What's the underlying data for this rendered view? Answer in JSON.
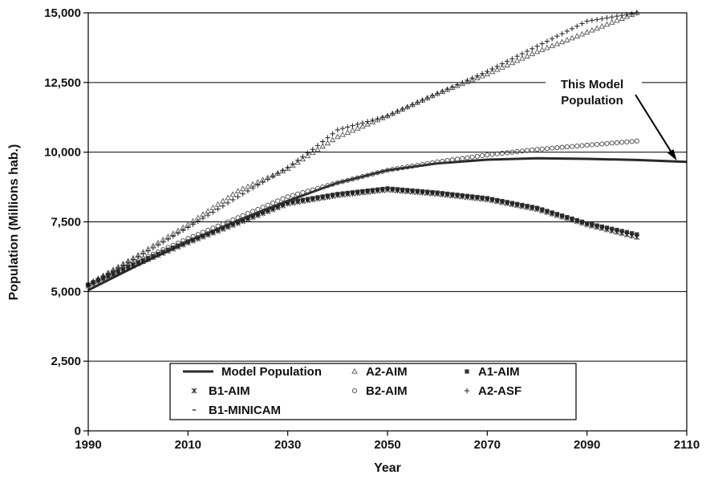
{
  "chart_data": {
    "type": "line",
    "xlabel": "Year",
    "ylabel": "Population (Millions hab.)",
    "xlim": [
      1990,
      2110
    ],
    "ylim": [
      0,
      15000
    ],
    "x_ticks": [
      "1990",
      "2010",
      "2030",
      "2050",
      "2070",
      "2090",
      "2110"
    ],
    "y_ticks": [
      "0",
      "2,500",
      "5,000",
      "7,500",
      "10,000",
      "12,500",
      "15,000"
    ],
    "grid": "horizontal",
    "legend_position": "bottom",
    "annotation": {
      "lines": [
        "This Model",
        "Population"
      ],
      "points_to": {
        "x": 2108,
        "y": 9700
      }
    },
    "series": [
      {
        "name": "Model Population",
        "marker": "line",
        "x": [
          1990,
          2000,
          2010,
          2020,
          2030,
          2040,
          2050,
          2060,
          2070,
          2080,
          2090,
          2100,
          2110
        ],
        "y": [
          5050,
          5950,
          6800,
          7550,
          8250,
          8900,
          9350,
          9600,
          9730,
          9780,
          9760,
          9720,
          9650
        ]
      },
      {
        "name": "A2-AIM",
        "marker": "triangle",
        "x": [
          1990,
          2000,
          2010,
          2020,
          2030,
          2040,
          2050,
          2060,
          2070,
          2080,
          2090,
          2100
        ],
        "y": [
          5250,
          6300,
          7400,
          8600,
          9400,
          10550,
          11300,
          12100,
          12800,
          13600,
          14300,
          15000
        ]
      },
      {
        "name": "A1-AIM",
        "marker": "square",
        "x": [
          1990,
          2000,
          2010,
          2020,
          2030,
          2040,
          2050,
          2060,
          2070,
          2080,
          2090,
          2100
        ],
        "y": [
          5250,
          6050,
          6800,
          7500,
          8200,
          8500,
          8700,
          8550,
          8350,
          8000,
          7450,
          7050
        ]
      },
      {
        "name": "B1-AIM",
        "marker": "asterisk",
        "x": [
          1990,
          2000,
          2010,
          2020,
          2030,
          2040,
          2050,
          2060,
          2070,
          2080,
          2090,
          2100
        ],
        "y": [
          5200,
          6000,
          6750,
          7450,
          8150,
          8450,
          8650,
          8500,
          8300,
          7950,
          7400,
          6950
        ]
      },
      {
        "name": "B2-AIM",
        "marker": "circle",
        "x": [
          1990,
          2000,
          2010,
          2020,
          2030,
          2040,
          2050,
          2060,
          2070,
          2080,
          2090,
          2100
        ],
        "y": [
          5250,
          6100,
          6900,
          7650,
          8400,
          8900,
          9350,
          9650,
          9900,
          10100,
          10250,
          10400
        ]
      },
      {
        "name": "A2-ASF",
        "marker": "plus",
        "x": [
          1990,
          2000,
          2010,
          2020,
          2030,
          2035,
          2040,
          2050,
          2060,
          2070,
          2080,
          2090,
          2100
        ],
        "y": [
          5250,
          6250,
          7300,
          8400,
          9450,
          10100,
          10800,
          11300,
          12100,
          12900,
          13800,
          14700,
          15000
        ]
      },
      {
        "name": "B1-MINICAM",
        "marker": "dash",
        "x": [
          1990,
          2000,
          2010,
          2020,
          2030,
          2040,
          2050,
          2060,
          2070,
          2080,
          2090,
          2100
        ],
        "y": [
          5200,
          6020,
          6780,
          7480,
          8180,
          8480,
          8680,
          8520,
          8320,
          7980,
          7420,
          7000
        ]
      }
    ]
  }
}
